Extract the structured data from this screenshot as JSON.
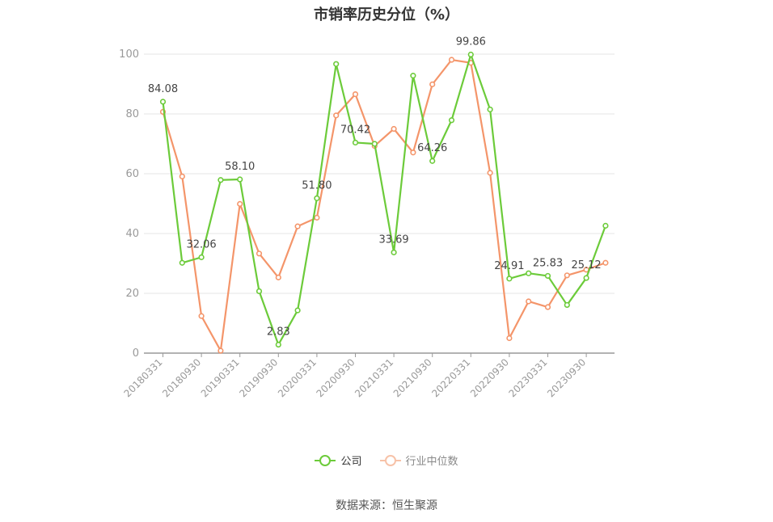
{
  "chart_data": {
    "type": "line",
    "title": "市销率历史分位（%）",
    "xlabel": "",
    "ylabel": "",
    "ylim": [
      0,
      100
    ],
    "yticks": [
      0,
      20,
      40,
      60,
      80,
      100
    ],
    "x": [
      "20180331",
      "20180630",
      "20180930",
      "20181231",
      "20190331",
      "20190630",
      "20190930",
      "20191231",
      "20200331",
      "20200630",
      "20200930",
      "20201231",
      "20210331",
      "20210630",
      "20210930",
      "20211231",
      "20220331",
      "20220630",
      "20220930",
      "20221231",
      "20230331",
      "20230630",
      "20230930",
      "20231231"
    ],
    "xtick_labels": [
      "20180331",
      "20180930",
      "20190331",
      "20190930",
      "20200331",
      "20200930",
      "20210331",
      "20210930",
      "20220331",
      "20220930",
      "20230331",
      "20230930"
    ],
    "series": [
      {
        "name": "公司",
        "color": "#6ccb3a",
        "values": [
          84.08,
          30.2,
          32.06,
          57.9,
          58.1,
          20.7,
          2.83,
          14.3,
          51.8,
          96.7,
          70.42,
          70.0,
          33.69,
          92.8,
          64.26,
          77.9,
          99.86,
          81.5,
          24.91,
          26.7,
          25.83,
          16.1,
          25.12,
          42.6
        ],
        "labels": {
          "0": "84.08",
          "2": "32.06",
          "4": "58.10",
          "6": "2.83",
          "8": "51.80",
          "10": "70.42",
          "12": "33.69",
          "14": "64.26",
          "16": "99.86",
          "18": "24.91",
          "20": "25.83",
          "22": "25.12"
        }
      },
      {
        "name": "行业中位数",
        "color": "#f4956a",
        "values": [
          80.7,
          59.1,
          12.4,
          0.8,
          49.9,
          33.3,
          25.3,
          42.4,
          45.3,
          79.5,
          86.6,
          69.3,
          75.0,
          67.1,
          89.9,
          98.1,
          97.1,
          60.3,
          5.0,
          17.3,
          15.4,
          26.0,
          27.9,
          30.2
        ]
      }
    ],
    "legend_position": "bottom"
  },
  "source_text": "数据来源：恒生聚源"
}
